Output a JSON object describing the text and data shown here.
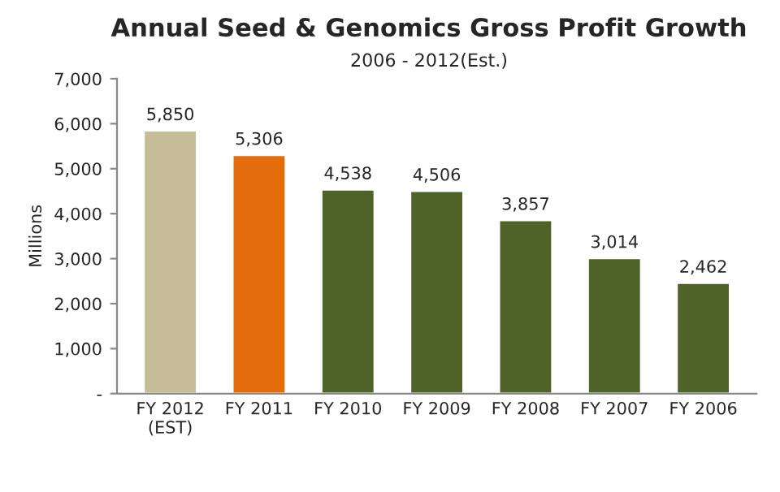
{
  "chart_data": {
    "type": "bar",
    "title": "Annual Seed & Genomics Gross Profit Growth",
    "subtitle": "2006 - 2012(Est.)",
    "ylabel": "Millions",
    "categories": [
      "FY 2012\n(EST)",
      "FY 2011",
      "FY 2010",
      "FY 2009",
      "FY 2008",
      "FY 2007",
      "FY 2006"
    ],
    "values": [
      5850,
      5306,
      4538,
      4506,
      3857,
      3014,
      2462
    ],
    "colors": [
      "#c4bd97",
      "#e46c0a",
      "#4f6228",
      "#4f6228",
      "#4f6228",
      "#4f6228",
      "#4f6228"
    ],
    "value_labels": [
      "5,850",
      "5,306",
      "4,538",
      "4,506",
      "3,857",
      "3,014",
      "2,462"
    ],
    "ylim": [
      0,
      7000
    ],
    "yticks": [
      {
        "value": 0,
        "label": "-"
      },
      {
        "value": 1000,
        "label": "1,000"
      },
      {
        "value": 2000,
        "label": "2,000"
      },
      {
        "value": 3000,
        "label": "3,000"
      },
      {
        "value": 4000,
        "label": "4,000"
      },
      {
        "value": 5000,
        "label": "5,000"
      },
      {
        "value": 6000,
        "label": "6,000"
      },
      {
        "value": 7000,
        "label": "7,000"
      }
    ],
    "grid": false,
    "legend": false
  }
}
